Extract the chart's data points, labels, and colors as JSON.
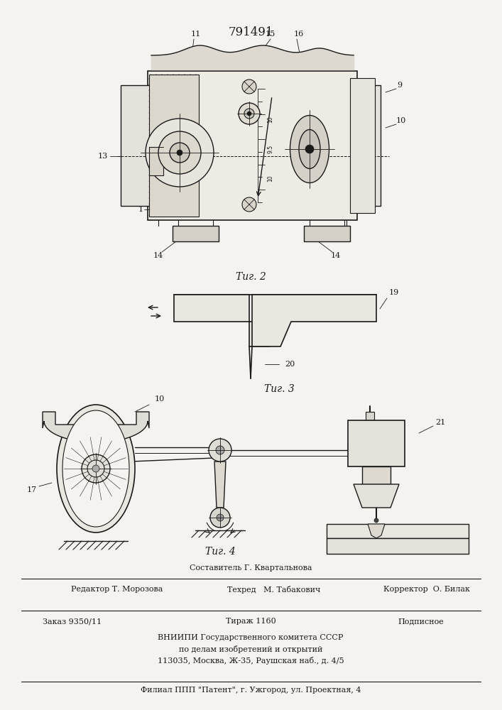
{
  "patent_number": "791491",
  "fig2_label": "Τиг. 2",
  "fig3_label": "Τиг. 3",
  "fig4_label": "Τиг. 4",
  "footer_line1": "Составитель Г. Квартальнова",
  "footer_line2_left": "Редактор Т. Морозова",
  "footer_line2_mid": "Техред   М. Табакович",
  "footer_line2_right": "Корректор  О. Билак",
  "footer_line3_left": "Заказ 9350/11",
  "footer_line3_mid": "Тираж 1160",
  "footer_line3_right": "Подписное",
  "footer_line4": "ВНИИПИ Государственного комитета СССР",
  "footer_line5": "по делам изобретений и открытий",
  "footer_line6": "113035, Москва, Ж-35, Раушская наб., д. 4/5",
  "footer_line7": "Филиал ППП \"Патент\", г. Ужгород, ул. Проектная, 4",
  "bg_color": "#f5f3ef",
  "line_color": "#1a1a1a"
}
